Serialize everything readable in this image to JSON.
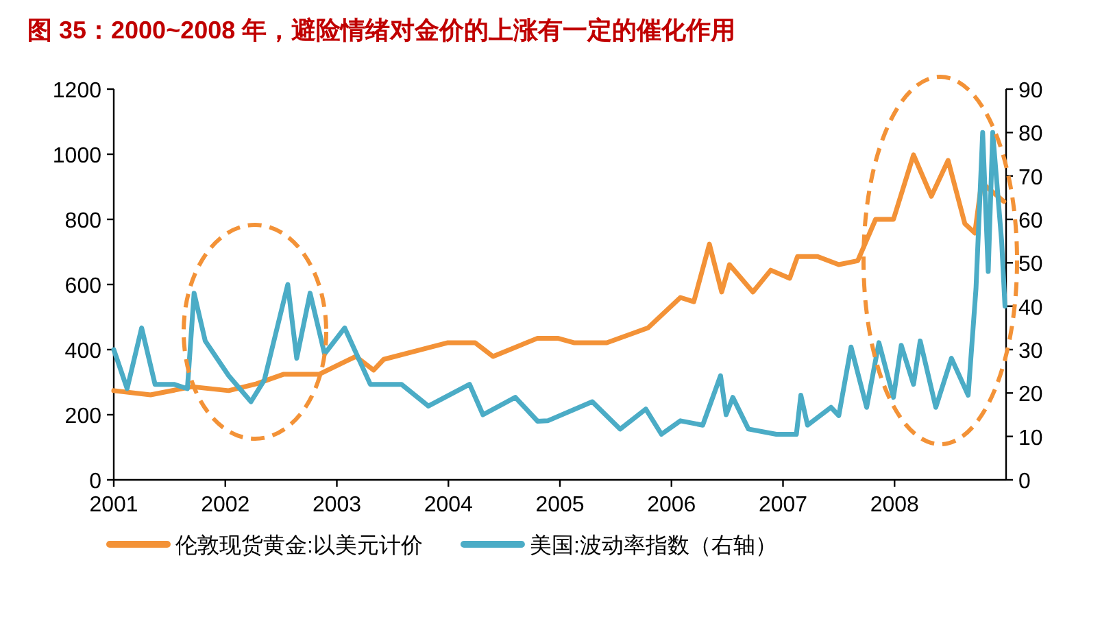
{
  "chart_data": {
    "type": "line",
    "title": "图 35：2000~2008 年，避险情绪对金价的上涨有一定的催化作用",
    "xlim": [
      2001,
      2009
    ],
    "xticks": [
      2001,
      2002,
      2003,
      2004,
      2005,
      2006,
      2007,
      2008
    ],
    "ylim": [
      0,
      1200
    ],
    "yticks": [
      0,
      200,
      400,
      600,
      800,
      1000,
      1200
    ],
    "y2lim": [
      0,
      90
    ],
    "y2ticks": [
      0,
      10,
      20,
      30,
      40,
      50,
      60,
      70,
      80,
      90
    ],
    "legend": "bottom",
    "grid": false,
    "marker": "none",
    "line_style": "solid",
    "series": [
      {
        "name": "伦敦现货黄金:以美元计价",
        "color": "#f39237",
        "axis": "y",
        "x": [
          2001.0,
          2001.33,
          2001.7,
          2002.03,
          2002.28,
          2002.52,
          2002.84,
          2003.0,
          2003.17,
          2003.33,
          2003.42,
          2003.99,
          2004.24,
          2004.4,
          2004.8,
          2004.98,
          2005.13,
          2005.42,
          2005.79,
          2006.08,
          2006.2,
          2006.34,
          2006.45,
          2006.52,
          2006.73,
          2006.89,
          2007.06,
          2007.13,
          2007.31,
          2007.5,
          2007.67,
          2007.83,
          2007.99,
          2008.17,
          2008.33,
          2008.48,
          2008.63,
          2008.72,
          2008.78,
          2008.98
        ],
        "values": [
          274,
          261,
          286,
          274,
          295,
          324,
          324,
          351,
          379,
          337,
          370,
          421,
          421,
          379,
          435,
          435,
          421,
          421,
          467,
          560,
          547,
          724,
          577,
          661,
          577,
          644,
          619,
          686,
          686,
          661,
          673,
          800,
          800,
          998,
          871,
          981,
          787,
          758,
          913,
          855
        ]
      },
      {
        "name": "美国:波动率指数（右轴）",
        "color": "#4bacc6",
        "axis": "y2",
        "x": [
          2001.0,
          2001.12,
          2001.25,
          2001.37,
          2001.54,
          2001.66,
          2001.72,
          2001.82,
          2002.03,
          2002.23,
          2002.35,
          2002.56,
          2002.64,
          2002.76,
          2002.89,
          2003.07,
          2003.3,
          2003.58,
          2003.82,
          2004.19,
          2004.31,
          2004.6,
          2004.8,
          2004.89,
          2005.29,
          2005.54,
          2005.77,
          2005.91,
          2006.08,
          2006.28,
          2006.44,
          2006.49,
          2006.55,
          2006.69,
          2006.94,
          2007.12,
          2007.16,
          2007.22,
          2007.43,
          2007.5,
          2007.61,
          2007.75,
          2007.86,
          2007.99,
          2008.06,
          2008.17,
          2008.23,
          2008.37,
          2008.51,
          2008.66,
          2008.73,
          2008.79,
          2008.84,
          2008.88,
          2008.96,
          2008.99
        ],
        "values": [
          30,
          21,
          35,
          22,
          22,
          21,
          43,
          32,
          24,
          18,
          23,
          45,
          28,
          43,
          29,
          35,
          22,
          22,
          17,
          22,
          15,
          19,
          13.5,
          13.6,
          18,
          11.7,
          16.3,
          10.5,
          13.6,
          12.6,
          24,
          15,
          19,
          11.7,
          10.5,
          10.5,
          19.5,
          12.6,
          16.7,
          14.8,
          30.6,
          16.7,
          31.6,
          19,
          31,
          22,
          32,
          16.7,
          28,
          19.5,
          44,
          80,
          48,
          80,
          55,
          40
        ]
      }
    ]
  }
}
